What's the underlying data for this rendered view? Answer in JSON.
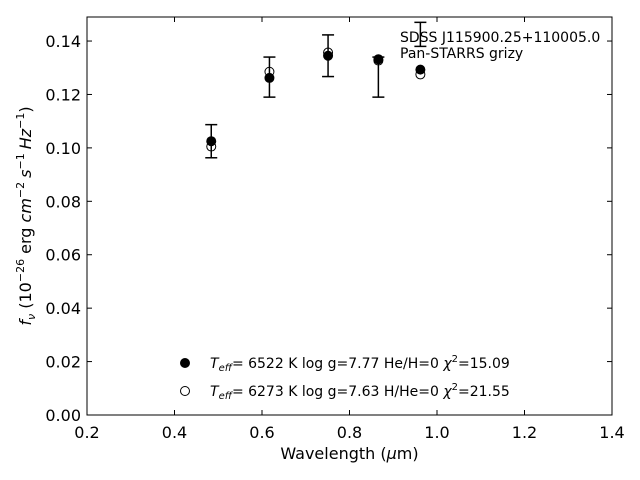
{
  "chart_data": {
    "type": "scatter",
    "xlabel_text": "Wavelength (",
    "xlabel_mu": "μ",
    "xlabel_unit": "m)",
    "ylabel_f": "f",
    "ylabel_nu": "ν",
    "ylabel_open": " (10",
    "ylabel_exp1": "−26",
    "ylabel_erg": " erg ",
    "ylabel_cm": "cm",
    "ylabel_exp2": "−2",
    "ylabel_s": "s",
    "ylabel_exp3": "−1",
    "ylabel_hz": "Hz",
    "ylabel_exp4": "−1",
    "ylabel_close": ")",
    "xlim": [
      0.2,
      1.4
    ],
    "ylim": [
      0.0,
      0.149
    ],
    "xticks": [
      0.2,
      0.4,
      0.6,
      0.8,
      1.0,
      1.2,
      1.4
    ],
    "xtick_labels": [
      "0.2",
      "0.4",
      "0.6",
      "0.8",
      "1.0",
      "1.2",
      "1.4"
    ],
    "yticks": [
      0.0,
      0.02,
      0.04,
      0.06,
      0.08,
      0.1,
      0.12,
      0.14
    ],
    "ytick_labels": [
      "0.00",
      "0.02",
      "0.04",
      "0.06",
      "0.08",
      "0.10",
      "0.12",
      "0.14"
    ],
    "grid": false,
    "annotation": {
      "line1": "SDSS J115900.25+110005.0",
      "line2": "Pan-STARRS grizy"
    },
    "observed": {
      "x": [
        0.484,
        0.617,
        0.751,
        0.866,
        0.962
      ],
      "y": [
        0.1025,
        0.1265,
        0.1345,
        0.1265,
        0.1425
      ],
      "yerr": [
        0.0062,
        0.0075,
        0.0078,
        0.0075,
        0.0045
      ]
    },
    "series": [
      {
        "name": "He/H=0",
        "marker": "filled",
        "x": [
          0.484,
          0.617,
          0.751,
          0.866,
          0.962
        ],
        "y": [
          0.1025,
          0.1262,
          0.1345,
          0.1332,
          0.1293
        ]
      },
      {
        "name": "H/He=0",
        "marker": "open",
        "x": [
          0.484,
          0.617,
          0.751,
          0.866,
          0.962
        ],
        "y": [
          0.1005,
          0.1285,
          0.1357,
          0.1327,
          0.1275
        ]
      }
    ],
    "legend": {
      "placement": "lower-center",
      "entries": [
        {
          "T": "T",
          "Tsub": "eff",
          "eq": "=  6522 K  log g=7.77  He/H=0  ",
          "chi": "χ",
          "chisup": "2",
          "chival": "=15.09"
        },
        {
          "T": "T",
          "Tsub": "eff",
          "eq": "=  6273 K  log g=7.63  H/He=0  ",
          "chi": "χ",
          "chisup": "2",
          "chival": "=21.55"
        }
      ]
    }
  }
}
